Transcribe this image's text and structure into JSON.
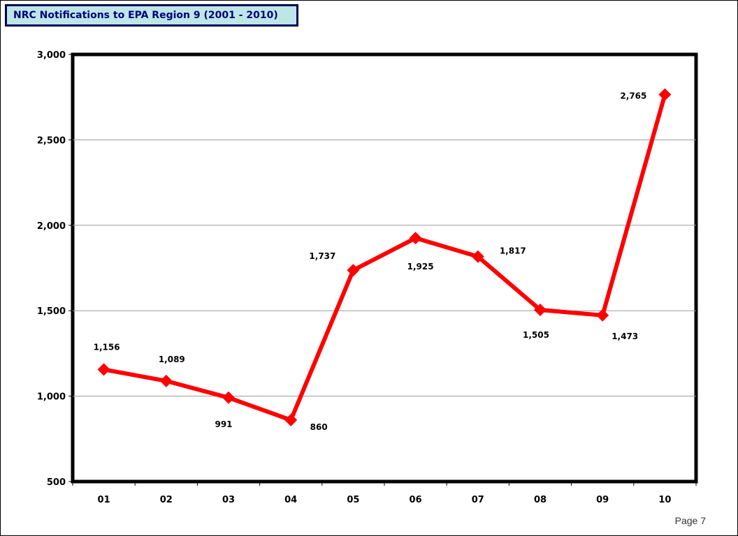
{
  "page": {
    "title": "NRC Notifications to EPA Region 9 (2001 - 2010)",
    "page_number": "Page 7"
  },
  "chart_data": {
    "type": "line",
    "title": "NRC Notifications to EPA Region 9 (2001 - 2010)",
    "xlabel": "",
    "ylabel": "",
    "categories": [
      "01",
      "02",
      "03",
      "04",
      "05",
      "06",
      "07",
      "08",
      "09",
      "10"
    ],
    "series": [
      {
        "values": [
          1156,
          1089,
          991,
          860,
          1737,
          1925,
          1817,
          1505,
          1473,
          2765
        ],
        "data_labels": [
          "1,156",
          "1,089",
          "991",
          "860",
          "1,737",
          "1,925",
          "1,817",
          "1,505",
          "1,473",
          "2,765"
        ],
        "color": "#ff0000",
        "marker": "diamond"
      }
    ],
    "ylim": [
      500,
      3000
    ],
    "yticks": [
      500,
      1000,
      1500,
      2000,
      2500,
      3000
    ],
    "ytick_labels": [
      "500",
      "1,000",
      "1,500",
      "2,000",
      "2,500",
      "3,000"
    ],
    "grid": true,
    "legend": "none"
  }
}
